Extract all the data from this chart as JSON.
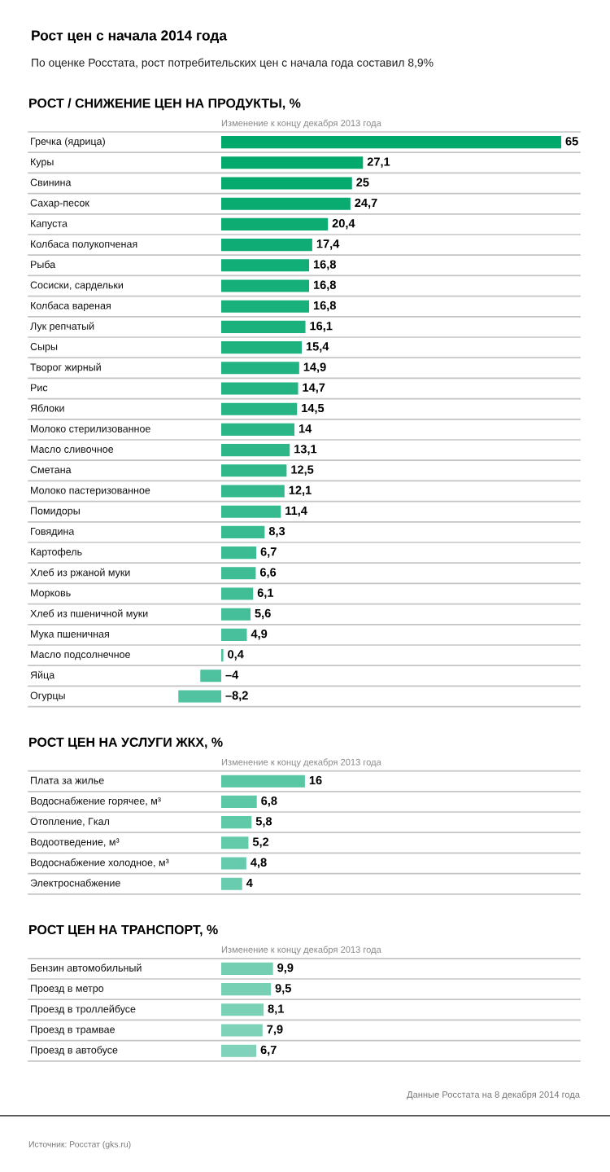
{
  "chart_data": [
    {
      "type": "other",
      "title": "Рост цен с начала 2014 года",
      "subtitle": "По оценке Росстата, рост потребительских цен с начала года составил 8,9%"
    },
    {
      "type": "bar",
      "orientation": "horizontal",
      "grid": "y",
      "title": "РОСТ / СНИЖЕНИЕ ЦЕН НА ПРОДУКТЫ, %",
      "subtitle": "Изменение к концу декабря 2013 года",
      "categories": [
        "Гречка (ядрица)",
        "Куры",
        "Свинина",
        "Сахар-песок",
        "Капуста",
        "Колбаса полукопченая",
        "Рыба",
        "Сосиски, сардельки",
        "Колбаса вареная",
        "Лук репчатый",
        "Сыры",
        "Творог жирный",
        "Рис",
        "Яблоки",
        "Молоко стерилизованное",
        "Масло сливочное",
        "Сметана",
        "Молоко пастеризованное",
        "Помидоры",
        "Говядина",
        "Картофель",
        "Хлеб из ржаной муки",
        "Морковь",
        "Хлеб из пшеничной муки",
        "Мука пшеничная",
        "Масло подсолнечное",
        "Яйца",
        "Огурцы"
      ],
      "values": [
        65,
        27.1,
        25,
        24.7,
        20.4,
        17.4,
        16.8,
        16.8,
        16.8,
        16.1,
        15.4,
        14.9,
        14.7,
        14.5,
        14,
        13.1,
        12.5,
        12.1,
        11.4,
        8.3,
        6.7,
        6.6,
        6.1,
        5.6,
        4.9,
        0.4,
        -4,
        -8.2
      ],
      "value_labels": [
        "65",
        "27,1",
        "25",
        "24,7",
        "20,4",
        "17,4",
        "16,8",
        "16,8",
        "16,8",
        "16,1",
        "15,4",
        "14,9",
        "14,7",
        "14,5",
        "14",
        "13,1",
        "12,5",
        "12,1",
        "11,4",
        "8,3",
        "6,7",
        "6,6",
        "6,1",
        "5,6",
        "4,9",
        "0,4",
        "–4",
        "–8,2"
      ],
      "colors": [
        "#00a86b",
        "#03a96d",
        "#06aa6f",
        "#09ab71",
        "#0cac73",
        "#0fad75",
        "#12ae77",
        "#15af79",
        "#18b07b",
        "#1bb17d",
        "#1eb27f",
        "#21b381",
        "#24b483",
        "#27b585",
        "#2ab687",
        "#2db789",
        "#30b88b",
        "#33b98d",
        "#36ba8f",
        "#39bb91",
        "#3cbc93",
        "#3fbd95",
        "#42be97",
        "#45bf99",
        "#48c09b",
        "#4bc19d",
        "#4ec29f",
        "#51c3a1"
      ]
    },
    {
      "type": "bar",
      "orientation": "horizontal",
      "grid": "y",
      "title": "РОСТ ЦЕН НА УСЛУГИ ЖКХ, %",
      "subtitle": "Изменение к концу декабря 2013 года",
      "categories": [
        "Плата за жилье",
        "Водоснабжение горячее, м³",
        "Отопление, Гкал",
        "Водоотведение, м³",
        "Водоснабжение холодное, м³",
        "Электроснабжение"
      ],
      "values": [
        16,
        6.8,
        5.8,
        5.2,
        4.8,
        4
      ],
      "value_labels": [
        "16",
        "6,8",
        "5,8",
        "5,2",
        "4,8",
        "4"
      ],
      "colors": [
        "#5ac7a4",
        "#5dc8a6",
        "#60c9a8",
        "#63caaa",
        "#66cbac",
        "#69ccae"
      ]
    },
    {
      "type": "bar",
      "orientation": "horizontal",
      "grid": "y",
      "title": "РОСТ ЦЕН НА ТРАНСПОРТ, %",
      "subtitle": "Изменение к концу декабря 2013 года",
      "categories": [
        "Бензин автомобильный",
        "Проезд в метро",
        "Проезд в троллейбусе",
        "Проезд в трамвае",
        "Проезд в автобусе"
      ],
      "values": [
        9.9,
        9.5,
        8.1,
        7.9,
        6.7
      ],
      "value_labels": [
        "9,9",
        "9,5",
        "8,1",
        "7,9",
        "6,7"
      ],
      "colors": [
        "#74cfb2",
        "#77d0b4",
        "#7ad1b6",
        "#7dd2b8",
        "#80d3ba"
      ],
      "annotations": [
        "Данные Росстата на 8 декабря 2014 года",
        "Источник: Росстат (gks.ru)"
      ]
    }
  ]
}
